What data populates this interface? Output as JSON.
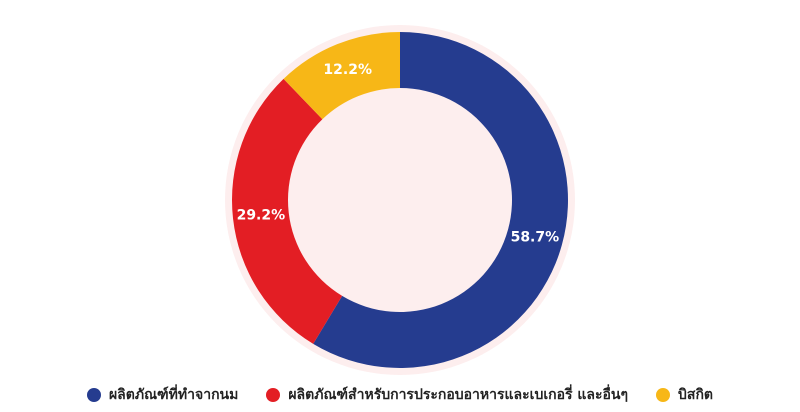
{
  "chart_data": {
    "type": "donut",
    "series": [
      {
        "name": "ผลิตภัณฑ์ที่ทำจากนม",
        "color": "#253c8f",
        "values": [
          58.7
        ],
        "value_labels": [
          "58.7%"
        ]
      },
      {
        "name": "ผลิตภัณฑ์สำหรับการประกอบอาหารและเบเกอรี่ และอื่นๆ",
        "color": "#e31e24",
        "values": [
          29.2
        ],
        "value_labels": [
          "29.2%"
        ]
      },
      {
        "name": "บิสกิต",
        "color": "#f7b717",
        "values": [
          12.2
        ],
        "value_labels": [
          "12.2%"
        ]
      }
    ]
  }
}
